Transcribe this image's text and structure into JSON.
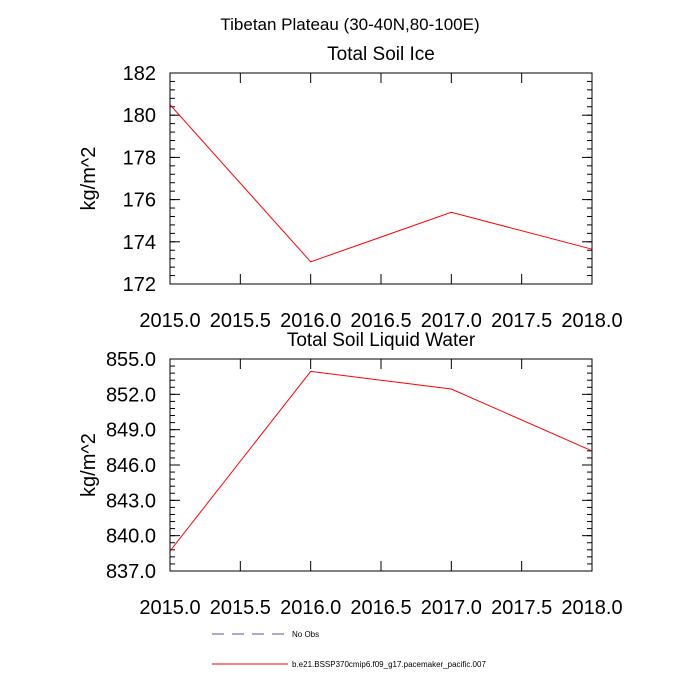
{
  "figure": {
    "title": "Tibetan Plateau (30-40N,80-100E)"
  },
  "chart_data": [
    {
      "type": "line",
      "title": "Total Soil Ice",
      "xlabel": "",
      "ylabel": "kg/m^2",
      "xlim": [
        2015.0,
        2018.0
      ],
      "ylim": [
        172,
        182
      ],
      "x_ticks": [
        2015.0,
        2015.5,
        2016.0,
        2016.5,
        2017.0,
        2017.5,
        2018.0
      ],
      "x_tick_labels": [
        "2015.0",
        "2015.5",
        "2016.0",
        "2016.5",
        "2017.0",
        "2017.5",
        "2018.0"
      ],
      "y_ticks": [
        172,
        174,
        176,
        178,
        180,
        182
      ],
      "y_tick_labels": [
        "172",
        "174",
        "176",
        "178",
        "180",
        "182"
      ],
      "y_minor_step": 0.4,
      "series": [
        {
          "name": "b.e21.BSSP370cmip6.f09_g17.pacemaker_pacific.007",
          "color": "#ff0000",
          "x": [
            2015.0,
            2016.0,
            2017.0,
            2018.0
          ],
          "y": [
            180.5,
            173.05,
            175.4,
            173.65
          ]
        }
      ]
    },
    {
      "type": "line",
      "title": "Total Soil Liquid Water",
      "xlabel": "",
      "ylabel": "kg/m^2",
      "xlim": [
        2015.0,
        2018.0
      ],
      "ylim": [
        837.0,
        855.0
      ],
      "x_ticks": [
        2015.0,
        2015.5,
        2016.0,
        2016.5,
        2017.0,
        2017.5,
        2018.0
      ],
      "x_tick_labels": [
        "2015.0",
        "2015.5",
        "2016.0",
        "2016.5",
        "2017.0",
        "2017.5",
        "2018.0"
      ],
      "y_ticks": [
        837.0,
        840.0,
        843.0,
        846.0,
        849.0,
        852.0,
        855.0
      ],
      "y_tick_labels": [
        "837.0",
        "840.0",
        "843.0",
        "846.0",
        "849.0",
        "852.0",
        "855.0"
      ],
      "y_minor_step": 0.6,
      "series": [
        {
          "name": "b.e21.BSSP370cmip6.f09_g17.pacemaker_pacific.007",
          "color": "#ff0000",
          "x": [
            2015.0,
            2016.0,
            2017.0,
            2018.0
          ],
          "y": [
            838.7,
            853.95,
            852.45,
            847.2
          ]
        }
      ]
    }
  ],
  "legend": {
    "items": [
      {
        "label": "No Obs",
        "color": "#5555aa",
        "style": "dashed"
      },
      {
        "label": "b.e21.BSSP370cmip6.f09_g17.pacemaker_pacific.007",
        "color": "#ff0000",
        "style": "solid"
      }
    ]
  }
}
